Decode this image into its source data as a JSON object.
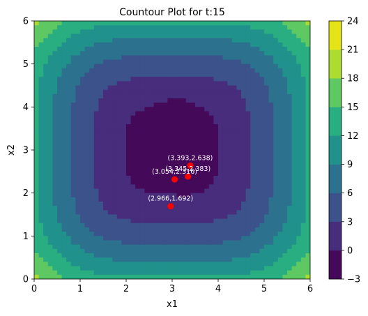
{
  "chart_data": {
    "type": "contour",
    "title": "Countour Plot for t:15",
    "xlabel": "x1",
    "ylabel": "x2",
    "xlim": [
      0,
      6
    ],
    "ylim": [
      0,
      6
    ],
    "xticks": [
      "0",
      "1",
      "2",
      "3",
      "4",
      "5",
      "6"
    ],
    "yticks": [
      "0",
      "1",
      "2",
      "3",
      "4",
      "5",
      "6"
    ],
    "colorbar": {
      "levels": [
        -3,
        0,
        3,
        6,
        9,
        12,
        15,
        18,
        21,
        24
      ],
      "tick_labels": [
        "−3",
        "0",
        "3",
        "6",
        "9",
        "12",
        "15",
        "18",
        "21",
        "24"
      ],
      "colors": [
        "#45095a",
        "#472d7b",
        "#3b528b",
        "#2c728e",
        "#21918c",
        "#28ae80",
        "#5ec962",
        "#addc30",
        "#e5e419"
      ]
    },
    "points": [
      {
        "x": 3.393,
        "y": 2.638,
        "label": "(3.393,2.638)"
      },
      {
        "x": 3.345,
        "y": 2.383,
        "label": "(3.345,2.383)"
      },
      {
        "x": 3.054,
        "y": 2.316,
        "label": "(3.054,2.316)"
      },
      {
        "x": 2.966,
        "y": 1.692,
        "label": "(2.966,1.692)"
      }
    ],
    "point_color": "#ff0000",
    "grid": false
  }
}
